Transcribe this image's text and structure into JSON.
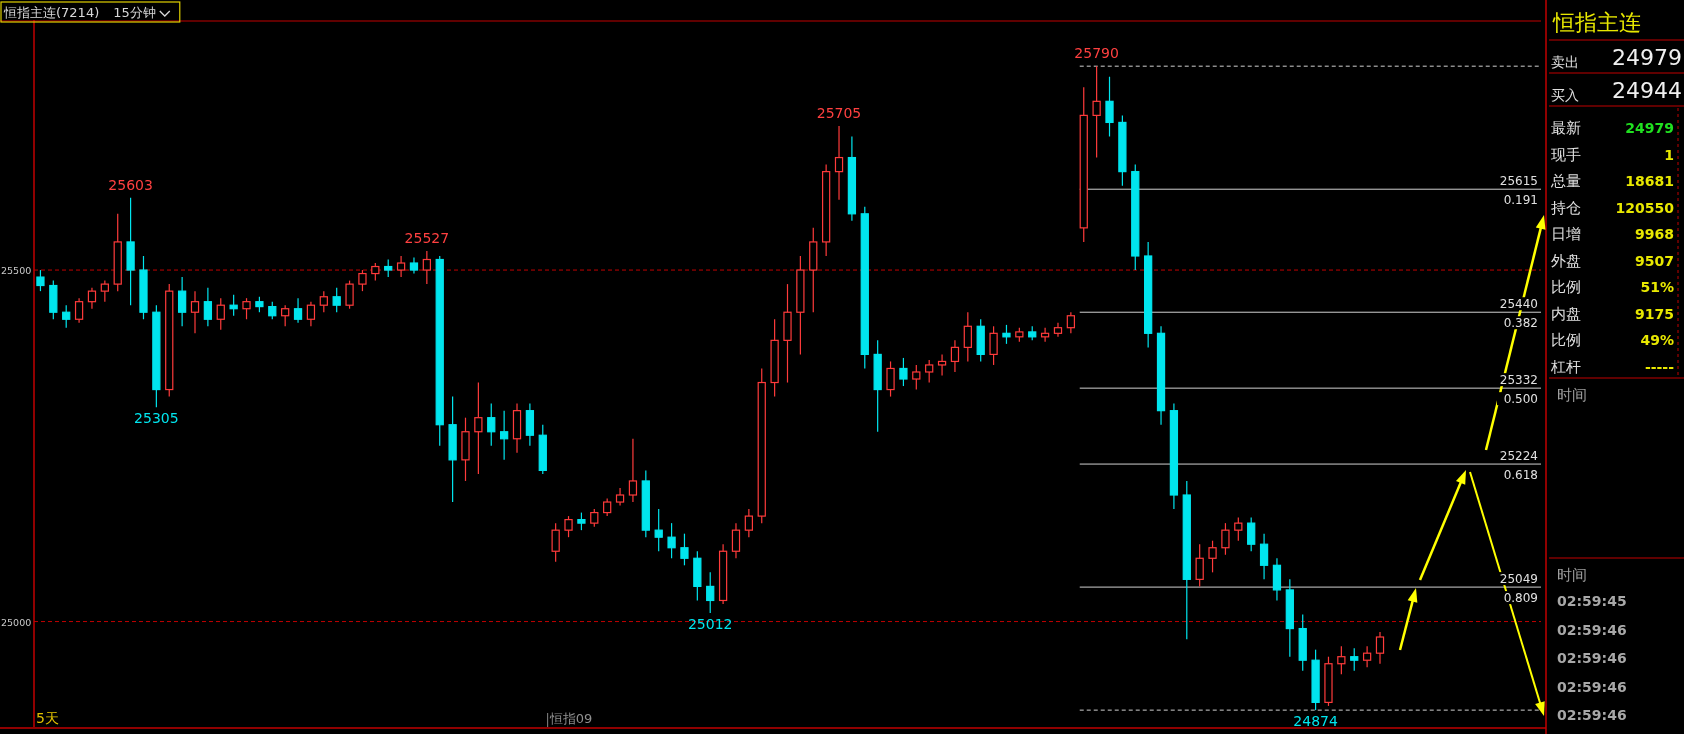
{
  "chart_data": [
    {
      "type": "candlestick",
      "title": "恒指主连(7214)",
      "subtitle": "15分钟",
      "categories": [
        null,
        null,
        null,
        null,
        null,
        null,
        null,
        null,
        null,
        null,
        null,
        null,
        null,
        null,
        null,
        null,
        null,
        null,
        null,
        null,
        null,
        null,
        null,
        null,
        null,
        null,
        null,
        null,
        null,
        null,
        null,
        null,
        null,
        null,
        null,
        null,
        null,
        null,
        null,
        null,
        null,
        null,
        null,
        null,
        null,
        null,
        null,
        null,
        null,
        null,
        null,
        null,
        null,
        null,
        null,
        null,
        null,
        null,
        null,
        null,
        null,
        null,
        null,
        null,
        null,
        null,
        null,
        null,
        null,
        null,
        null,
        null,
        null,
        null,
        null,
        null,
        null,
        null,
        null,
        null,
        null,
        null,
        null,
        null,
        null,
        null,
        null,
        null,
        null,
        null,
        null,
        null,
        null,
        null,
        null,
        null,
        null,
        null,
        null,
        null,
        null,
        null,
        null,
        null,
        null,
        null,
        null,
        null,
        null,
        null,
        null,
        null,
        null,
        null,
        null,
        null,
        null
      ],
      "ohlc": [
        [
          25490,
          25500,
          25470,
          25478
        ],
        [
          25478,
          25485,
          25430,
          25440
        ],
        [
          25440,
          25450,
          25418,
          25430
        ],
        [
          25430,
          25460,
          25425,
          25455
        ],
        [
          25455,
          25475,
          25445,
          25470
        ],
        [
          25470,
          25485,
          25455,
          25480
        ],
        [
          25480,
          25580,
          25470,
          25540
        ],
        [
          25540,
          25603,
          25450,
          25500
        ],
        [
          25500,
          25520,
          25430,
          25440
        ],
        [
          25440,
          25450,
          25305,
          25330
        ],
        [
          25330,
          25480,
          25320,
          25470
        ],
        [
          25470,
          25490,
          25420,
          25440
        ],
        [
          25440,
          25470,
          25410,
          25455
        ],
        [
          25455,
          25475,
          25420,
          25430
        ],
        [
          25430,
          25460,
          25415,
          25450
        ],
        [
          25450,
          25465,
          25435,
          25445
        ],
        [
          25445,
          25460,
          25430,
          25455
        ],
        [
          25455,
          25462,
          25440,
          25448
        ],
        [
          25448,
          25455,
          25430,
          25435
        ],
        [
          25435,
          25450,
          25420,
          25445
        ],
        [
          25445,
          25460,
          25425,
          25430
        ],
        [
          25430,
          25455,
          25420,
          25450
        ],
        [
          25450,
          25470,
          25440,
          25462
        ],
        [
          25462,
          25475,
          25440,
          25450
        ],
        [
          25450,
          25485,
          25445,
          25480
        ],
        [
          25480,
          25500,
          25470,
          25495
        ],
        [
          25495,
          25510,
          25485,
          25505
        ],
        [
          25505,
          25515,
          25490,
          25500
        ],
        [
          25500,
          25520,
          25490,
          25510
        ],
        [
          25510,
          25518,
          25495,
          25500
        ],
        [
          25500,
          25527,
          25480,
          25515
        ],
        [
          25515,
          25520,
          25250,
          25280
        ],
        [
          25280,
          25320,
          25170,
          25230
        ],
        [
          25230,
          25290,
          25200,
          25270
        ],
        [
          25270,
          25340,
          25210,
          25290
        ],
        [
          25290,
          25310,
          25250,
          25270
        ],
        [
          25270,
          25300,
          25230,
          25260
        ],
        [
          25260,
          25310,
          25240,
          25300
        ],
        [
          25300,
          25310,
          25250,
          25265
        ],
        [
          25265,
          25280,
          25210,
          25215
        ],
        [
          25100,
          25140,
          25085,
          25130
        ],
        [
          25130,
          25150,
          25120,
          25145
        ],
        [
          25145,
          25155,
          25130,
          25140
        ],
        [
          25140,
          25160,
          25135,
          25155
        ],
        [
          25155,
          25175,
          25150,
          25170
        ],
        [
          25170,
          25190,
          25165,
          25180
        ],
        [
          25180,
          25260,
          25170,
          25200
        ],
        [
          25200,
          25215,
          25120,
          25130
        ],
        [
          25130,
          25160,
          25100,
          25120
        ],
        [
          25120,
          25140,
          25090,
          25105
        ],
        [
          25105,
          25125,
          25080,
          25090
        ],
        [
          25090,
          25100,
          25030,
          25050
        ],
        [
          25050,
          25070,
          25012,
          25030
        ],
        [
          25030,
          25110,
          25025,
          25100
        ],
        [
          25100,
          25140,
          25090,
          25130
        ],
        [
          25130,
          25160,
          25120,
          25150
        ],
        [
          25150,
          25360,
          25140,
          25340
        ],
        [
          25340,
          25430,
          25320,
          25400
        ],
        [
          25400,
          25480,
          25340,
          25440
        ],
        [
          25440,
          25520,
          25380,
          25500
        ],
        [
          25500,
          25560,
          25440,
          25540
        ],
        [
          25540,
          25650,
          25520,
          25640
        ],
        [
          25640,
          25705,
          25600,
          25660
        ],
        [
          25660,
          25690,
          25570,
          25580
        ],
        [
          25580,
          25590,
          25360,
          25380
        ],
        [
          25380,
          25400,
          25270,
          25330
        ],
        [
          25330,
          25370,
          25320,
          25360
        ],
        [
          25360,
          25375,
          25335,
          25345
        ],
        [
          25345,
          25365,
          25330,
          25355
        ],
        [
          25355,
          25372,
          25340,
          25365
        ],
        [
          25365,
          25380,
          25350,
          25370
        ],
        [
          25370,
          25400,
          25355,
          25390
        ],
        [
          25390,
          25440,
          25370,
          25420
        ],
        [
          25420,
          25430,
          25370,
          25380
        ],
        [
          25380,
          25420,
          25365,
          25410
        ],
        [
          25410,
          25422,
          25395,
          25405
        ],
        [
          25405,
          25418,
          25398,
          25412
        ],
        [
          25412,
          25420,
          25400,
          25405
        ],
        [
          25405,
          25418,
          25398,
          25410
        ],
        [
          25410,
          25425,
          25405,
          25418
        ],
        [
          25418,
          25440,
          25410,
          25435
        ],
        [
          25560,
          25760,
          25540,
          25720
        ],
        [
          25720,
          25790,
          25660,
          25740
        ],
        [
          25740,
          25775,
          25690,
          25710
        ],
        [
          25710,
          25720,
          25620,
          25640
        ],
        [
          25640,
          25650,
          25500,
          25520
        ],
        [
          25520,
          25540,
          25390,
          25410
        ],
        [
          25410,
          25420,
          25280,
          25300
        ],
        [
          25300,
          25310,
          25160,
          25180
        ],
        [
          25180,
          25200,
          24975,
          25060
        ],
        [
          25060,
          25110,
          25050,
          25090
        ],
        [
          25090,
          25115,
          25070,
          25105
        ],
        [
          25105,
          25140,
          25095,
          25130
        ],
        [
          25130,
          25148,
          25115,
          25140
        ],
        [
          25140,
          25148,
          25100,
          25110
        ],
        [
          25110,
          25125,
          25060,
          25080
        ],
        [
          25080,
          25090,
          25030,
          25045
        ],
        [
          25045,
          25060,
          24950,
          24990
        ],
        [
          24990,
          25010,
          24930,
          24945
        ],
        [
          24945,
          24960,
          24874,
          24885
        ],
        [
          24885,
          24950,
          24880,
          24940
        ],
        [
          24940,
          24965,
          24925,
          24950
        ],
        [
          24950,
          24962,
          24930,
          24945
        ],
        [
          24945,
          24965,
          24935,
          24955
        ],
        [
          24955,
          24985,
          24940,
          24978
        ],
        null,
        null,
        null,
        null,
        null,
        null,
        null,
        null,
        null,
        null,
        null,
        null
      ],
      "ylim": [
        24850,
        25850
      ],
      "yticks": [
        25500,
        25000
      ],
      "ref_lines": [
        {
          "axis": "y",
          "value": 25500,
          "color": "#c00000",
          "line_style": "dashed"
        },
        {
          "axis": "y",
          "value": 25000,
          "color": "#c00000",
          "line_style": "dashed"
        },
        {
          "axis": "y",
          "value": 25790,
          "color": "#d0d0d0",
          "line_style": "dashed"
        },
        {
          "axis": "y",
          "value": 24874,
          "color": "#d0d0d0",
          "line_style": "dashed"
        },
        {
          "axis": "y",
          "value": 25615,
          "label": "25615\n0.191",
          "color": "#d0d0d0",
          "line_style": "solid"
        },
        {
          "axis": "y",
          "value": 25440,
          "label": "25440\n0.382",
          "color": "#d0d0d0",
          "line_style": "solid"
        },
        {
          "axis": "y",
          "value": 25332,
          "label": "25332\n0.500",
          "color": "#d0d0d0",
          "line_style": "solid"
        },
        {
          "axis": "y",
          "value": 25224,
          "label": "25224\n0.618",
          "color": "#d0d0d0",
          "line_style": "solid"
        },
        {
          "axis": "y",
          "value": 25049,
          "label": "25049\n0.809",
          "color": "#d0d0d0",
          "line_style": "solid"
        }
      ],
      "annotations": [
        {
          "text": "25603",
          "y": 25603
        },
        {
          "text": "25305",
          "y": 25305
        },
        {
          "text": "25527",
          "y": 25527
        },
        {
          "text": "25012",
          "y": 25012
        },
        {
          "text": "25705",
          "y": 25705
        },
        {
          "text": "25790",
          "y": 25790
        },
        {
          "text": "24874",
          "y": 24874
        },
        "5天",
        "恒指09"
      ],
      "data_labels": false
    },
    {
      "type": "other",
      "title": "恒指主连",
      "annotations": [
        "卖出",
        "24979",
        "买入",
        "24944",
        "最新",
        "24979",
        "现手",
        "1",
        "总量",
        "18681",
        "持仓",
        "120550",
        "日增",
        "9968",
        "外盘",
        "9507",
        "比例",
        "51%",
        "内盘",
        "9175",
        "比例",
        "49%",
        "杠杆",
        "-----",
        "时间",
        "时间",
        "02:59:45",
        "02:59:46",
        "02:59:46",
        "02:59:46",
        "02:59:46"
      ]
    }
  ]
}
